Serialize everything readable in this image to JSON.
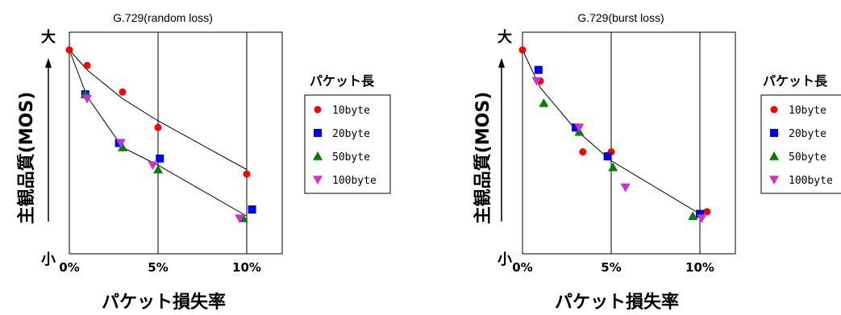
{
  "chart_data": [
    {
      "type": "scatter",
      "title": "G.729(random loss)",
      "xlabel": "パケット損失率",
      "ylabel": "主観品質(MOS)",
      "y_top_label": "大",
      "y_bottom_label": "小",
      "x_ticks": [
        "0%",
        "5%",
        "10%"
      ],
      "xlim": [
        0,
        12
      ],
      "ylim": [
        0,
        10
      ],
      "grid": "vertical lines at 5% and 10%",
      "legend_title": "パケット長",
      "legend_position": "right",
      "series": [
        {
          "name": "10byte",
          "color": "#ff0000",
          "marker": "circle",
          "x": [
            0,
            1,
            3,
            5,
            10
          ],
          "y": [
            9.2,
            8.5,
            7.3,
            5.7,
            3.6
          ]
        },
        {
          "name": "20byte",
          "color": "#0000ff",
          "marker": "square",
          "x": [
            0.9,
            2.8,
            5.1,
            10.3
          ],
          "y": [
            7.2,
            5.0,
            4.3,
            2.0
          ]
        },
        {
          "name": "50byte",
          "color": "#008000",
          "marker": "triangle-up",
          "x": [
            0.9,
            3.0,
            5.0,
            9.8
          ],
          "y": [
            7.2,
            4.8,
            3.8,
            1.6
          ]
        },
        {
          "name": "100byte",
          "color": "#cc33cc",
          "marker": "triangle-down",
          "x": [
            1.0,
            2.9,
            4.7,
            9.6
          ],
          "y": [
            7.0,
            5.0,
            4.0,
            1.6
          ]
        }
      ],
      "trend_lines": [
        {
          "x": [
            0,
            1,
            3,
            5,
            10
          ],
          "y": [
            9.2,
            8.3,
            7.0,
            6.0,
            3.8
          ]
        },
        {
          "x": [
            0,
            1,
            3,
            5,
            10
          ],
          "y": [
            9.2,
            7.1,
            4.8,
            4.0,
            1.7
          ]
        }
      ]
    },
    {
      "type": "scatter",
      "title": "G.729(burst loss)",
      "xlabel": "パケット損失率",
      "ylabel": "主観品質(MOS)",
      "y_top_label": "大",
      "y_bottom_label": "小",
      "x_ticks": [
        "0%",
        "5%",
        "10%"
      ],
      "xlim": [
        0,
        12
      ],
      "ylim": [
        0,
        10
      ],
      "grid": "vertical lines at 5% and 10%",
      "legend_title": "パケット長",
      "legend_position": "right",
      "series": [
        {
          "name": "10byte",
          "color": "#ff0000",
          "marker": "circle",
          "x": [
            0,
            1.0,
            3.4,
            5.0,
            10.4
          ],
          "y": [
            9.2,
            7.8,
            4.6,
            4.6,
            1.9
          ]
        },
        {
          "name": "20byte",
          "color": "#0000ff",
          "marker": "square",
          "x": [
            0.9,
            3.0,
            4.8,
            10.0
          ],
          "y": [
            8.3,
            5.7,
            4.4,
            1.8
          ]
        },
        {
          "name": "50byte",
          "color": "#008000",
          "marker": "triangle-up",
          "x": [
            1.2,
            3.2,
            5.1,
            9.6
          ],
          "y": [
            6.8,
            5.5,
            3.9,
            1.7
          ]
        },
        {
          "name": "100byte",
          "color": "#cc33cc",
          "marker": "triangle-down",
          "x": [
            0.8,
            3.2,
            5.8,
            10.1
          ],
          "y": [
            7.8,
            5.7,
            3.0,
            1.6
          ]
        }
      ],
      "trend_lines": [
        {
          "x": [
            0,
            1,
            3,
            5,
            10
          ],
          "y": [
            9.2,
            7.5,
            5.6,
            4.2,
            1.8
          ]
        }
      ]
    }
  ]
}
